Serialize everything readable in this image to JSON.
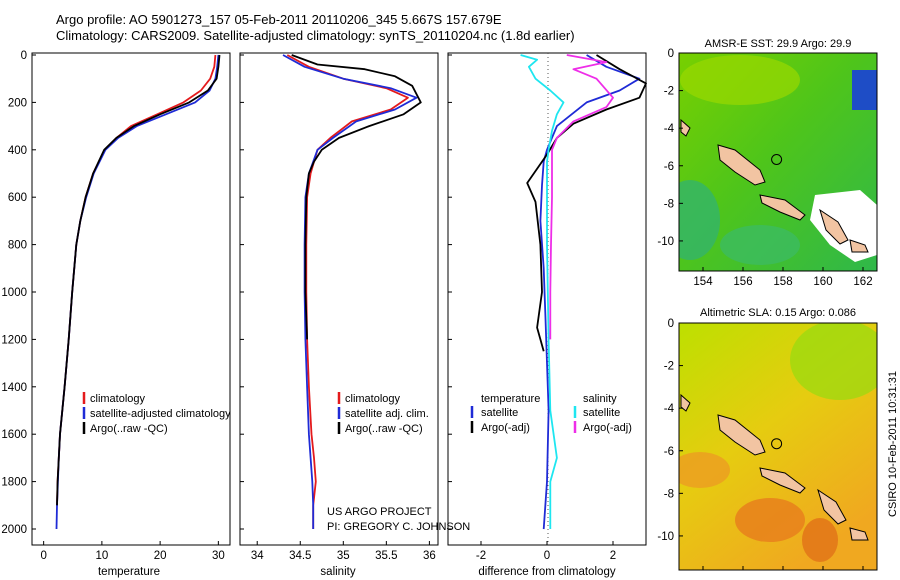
{
  "header": {
    "title_line1": "Argo profile: AO 5901273_157 05-Feb-2011 20110206_345 5.667S 157.679E",
    "title_line2": "Climatology: CARS2009. Satellite-adjusted climatology: synTS_20110204.nc (1.8d earlier)"
  },
  "credits": {
    "project": "US ARGO PROJECT",
    "pi": "PI: GREGORY C. JOHNSON",
    "stamp": "CSIRO 10-Feb-2011 10:31:31"
  },
  "colors": {
    "climatology": "#e41a1c",
    "satellite": "#1f2bd6",
    "argo": "#000000",
    "salinity_satellite": "#1ee6f0",
    "salinity_argo": "#ee2ee8",
    "land": "#f2c4a2"
  },
  "chart_data": [
    {
      "type": "line",
      "id": "temperature",
      "xlabel": "temperature",
      "xlim": [
        -2,
        32
      ],
      "xticks": [
        0,
        10,
        20,
        30
      ],
      "ylim": [
        2050,
        0
      ],
      "yticks": [
        0,
        200,
        400,
        600,
        800,
        1000,
        1200,
        1400,
        1600,
        1800,
        2000
      ],
      "legend": [
        "climatology",
        "satellite-adjusted climatology",
        "Argo(..raw -QC)"
      ],
      "series": [
        {
          "name": "climatology",
          "color": "#e41a1c",
          "x": [
            29.5,
            29.3,
            28.6,
            27.0,
            24.0,
            19.5,
            15.0,
            12.5,
            10.5,
            8.5,
            7.2,
            6.3,
            5.6,
            4.9,
            4.3,
            3.6,
            3.2,
            2.8,
            2.6,
            2.4,
            2.3
          ],
          "y": [
            0,
            50,
            100,
            150,
            200,
            250,
            300,
            350,
            400,
            500,
            600,
            700,
            800,
            1000,
            1200,
            1400,
            1500,
            1600,
            1700,
            1800,
            1900
          ]
        },
        {
          "name": "satellite-adjusted climatology",
          "color": "#1f2bd6",
          "x": [
            30.0,
            29.8,
            29.5,
            28.5,
            26.0,
            21.0,
            16.0,
            12.8,
            10.6,
            8.6,
            7.3,
            6.3,
            5.6,
            4.9,
            4.3,
            3.6,
            3.2,
            2.8,
            2.6,
            2.3,
            2.2
          ],
          "y": [
            0,
            50,
            100,
            150,
            200,
            250,
            300,
            350,
            400,
            500,
            600,
            700,
            800,
            1000,
            1200,
            1400,
            1500,
            1600,
            1700,
            1900,
            2000
          ]
        },
        {
          "name": "Argo(..raw -QC)",
          "color": "#000000",
          "x": [
            30.2,
            30.0,
            29.7,
            28.2,
            25.0,
            20.0,
            15.5,
            12.5,
            10.4,
            8.5,
            7.2,
            6.3,
            5.6,
            4.9,
            4.3,
            3.6,
            3.2,
            2.8,
            2.6,
            2.4,
            2.3
          ],
          "y": [
            0,
            50,
            100,
            150,
            200,
            250,
            300,
            350,
            400,
            500,
            600,
            700,
            800,
            1000,
            1200,
            1400,
            1500,
            1600,
            1700,
            1800,
            1900
          ]
        }
      ]
    },
    {
      "type": "line",
      "id": "salinity",
      "xlabel": "salinity",
      "xlim": [
        33.8,
        36.1
      ],
      "xticks": [
        34,
        34.5,
        35,
        35.5,
        36
      ],
      "xticklabels": [
        "34",
        "34.5",
        "35",
        "35.5",
        "36"
      ],
      "ylim": [
        2050,
        0
      ],
      "legend": [
        "climatology",
        "satellite adj. clim.",
        "Argo(..raw -QC)"
      ],
      "series": [
        {
          "name": "climatology",
          "color": "#e41a1c",
          "x": [
            34.35,
            34.6,
            35.0,
            35.5,
            35.75,
            35.55,
            35.1,
            34.85,
            34.7,
            34.62,
            34.58,
            34.57,
            34.57,
            34.58,
            34.6,
            34.63,
            34.66,
            34.68,
            34.65,
            34.65
          ],
          "y": [
            0,
            50,
            100,
            140,
            180,
            230,
            280,
            350,
            400,
            500,
            600,
            800,
            1000,
            1200,
            1400,
            1600,
            1700,
            1800,
            1900,
            2000
          ]
        },
        {
          "name": "satellite adj. clim.",
          "color": "#1f2bd6",
          "x": [
            34.3,
            34.55,
            35.0,
            35.55,
            35.85,
            35.6,
            35.15,
            34.88,
            34.7,
            34.6,
            34.56,
            34.55,
            34.55,
            34.56,
            34.58,
            34.6,
            34.62,
            34.64,
            34.65,
            34.65
          ],
          "y": [
            0,
            50,
            100,
            140,
            180,
            230,
            280,
            350,
            400,
            500,
            600,
            800,
            1000,
            1200,
            1400,
            1600,
            1700,
            1800,
            1900,
            2000
          ]
        },
        {
          "name": "Argo(..raw -QC)",
          "color": "#000000",
          "x": [
            34.4,
            34.7,
            35.25,
            35.6,
            35.8,
            35.9,
            35.7,
            35.3,
            34.95,
            34.75,
            34.66,
            34.6,
            34.57,
            34.56,
            34.56,
            34.58
          ],
          "y": [
            0,
            40,
            60,
            90,
            130,
            200,
            250,
            300,
            350,
            400,
            450,
            500,
            600,
            800,
            1000,
            1200
          ]
        }
      ]
    },
    {
      "type": "line",
      "id": "difference",
      "xlabel": "difference from climatology",
      "xlim": [
        -3,
        3
      ],
      "xticks": [
        -2,
        0,
        2
      ],
      "ylim": [
        2050,
        0
      ],
      "legend_headers": [
        "temperature",
        "salinity"
      ],
      "legend": [
        "satellite",
        "Argo(-adj)",
        "satellite",
        "Argo(-adj)"
      ],
      "series": [
        {
          "name": "temperature satellite",
          "color": "#1f2bd6",
          "x": [
            1.2,
            1.8,
            2.8,
            2.2,
            1.2,
            0.3,
            0.0,
            -0.1,
            -0.15,
            -0.2,
            -0.1,
            -0.05,
            0.0,
            0.05,
            0.0,
            -0.1
          ],
          "y": [
            0,
            50,
            100,
            150,
            200,
            300,
            400,
            450,
            550,
            700,
            900,
            1100,
            1300,
            1500,
            1800,
            2000
          ]
        },
        {
          "name": "temperature Argo(-adj)",
          "color": "#000000",
          "x": [
            1.5,
            2.2,
            3.0,
            2.8,
            1.8,
            0.8,
            0.3,
            0.0,
            -0.4,
            -0.6,
            -0.35,
            -0.2,
            -0.15,
            -0.3,
            -0.2,
            -0.1
          ],
          "y": [
            0,
            60,
            120,
            180,
            230,
            290,
            350,
            420,
            500,
            540,
            620,
            800,
            1000,
            1150,
            1200,
            1250
          ]
        },
        {
          "name": "salinity satellite",
          "color": "#1ee6f0",
          "x": [
            -0.8,
            -0.3,
            -0.55,
            -0.35,
            0.1,
            0.5,
            0.3,
            0.15,
            0.05,
            0.0,
            0.0,
            0.05,
            0.1,
            0.3,
            0.1,
            0.1
          ],
          "y": [
            0,
            20,
            50,
            100,
            150,
            200,
            250,
            320,
            400,
            450,
            800,
            1200,
            1500,
            1700,
            1800,
            2000
          ]
        },
        {
          "name": "salinity Argo(-adj)",
          "color": "#ee2ee8",
          "x": [
            0.6,
            1.8,
            0.8,
            1.5,
            2.0,
            1.8,
            0.8,
            0.3,
            0.15,
            0.15,
            0.12,
            0.1,
            0.1
          ],
          "y": [
            0,
            30,
            60,
            100,
            180,
            220,
            280,
            350,
            400,
            600,
            800,
            1000,
            1200
          ]
        }
      ]
    }
  ],
  "maps": [
    {
      "title": "AMSR-E SST: 29.9 Argo: 29.9",
      "xlim": [
        152.8,
        162.7
      ],
      "ylim": [
        -11.6,
        0
      ],
      "xticks": [
        154,
        156,
        158,
        160,
        162
      ],
      "yticks": [
        0,
        -2,
        -4,
        -6,
        -8,
        -10
      ],
      "argo_lon": 157.679,
      "argo_lat": -5.667,
      "palette": "sst"
    },
    {
      "title": "Altimetric SLA: 0.15 Argo: 0.086",
      "xlim": [
        152.8,
        162.7
      ],
      "ylim": [
        -11.6,
        0
      ],
      "xticks": [
        154,
        156,
        158,
        160,
        162
      ],
      "yticks": [
        0,
        -2,
        -4,
        -6,
        -8,
        -10
      ],
      "argo_lon": 157.679,
      "argo_lat": -5.667,
      "palette": "sla"
    }
  ]
}
